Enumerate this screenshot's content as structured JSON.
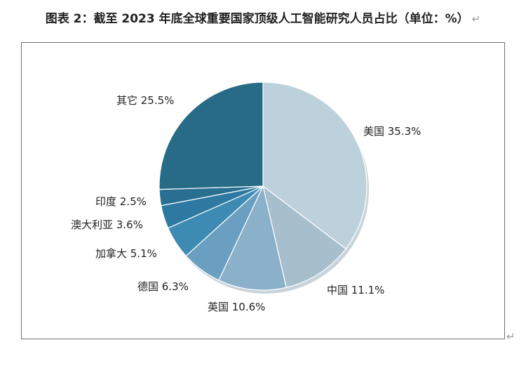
{
  "title": "图表 2：截至 2023 年底全球重要国家顶级人工智能研究人员占比（单位：%）",
  "return_mark": "↵",
  "chart_data": {
    "type": "pie",
    "categories": [
      "美国",
      "中国",
      "英国",
      "德国",
      "加拿大",
      "澳大利亚",
      "印度",
      "其它"
    ],
    "values": [
      35.3,
      11.1,
      10.6,
      6.3,
      5.1,
      3.6,
      2.5,
      25.5
    ],
    "labels": [
      "美国 35.3%",
      "中国 11.1%",
      "英国  10.6%",
      "德国 6.3%",
      "加拿大  5.1%",
      "澳大利亚 3.6%",
      "印度 2.5%",
      "其它 25.5%"
    ],
    "colors": [
      "#bdd1dd",
      "#a7bfcc",
      "#8bb0c9",
      "#6a9fc1",
      "#3d8ab3",
      "#2e79a1",
      "#296f91",
      "#276b87"
    ],
    "legend": "none"
  }
}
